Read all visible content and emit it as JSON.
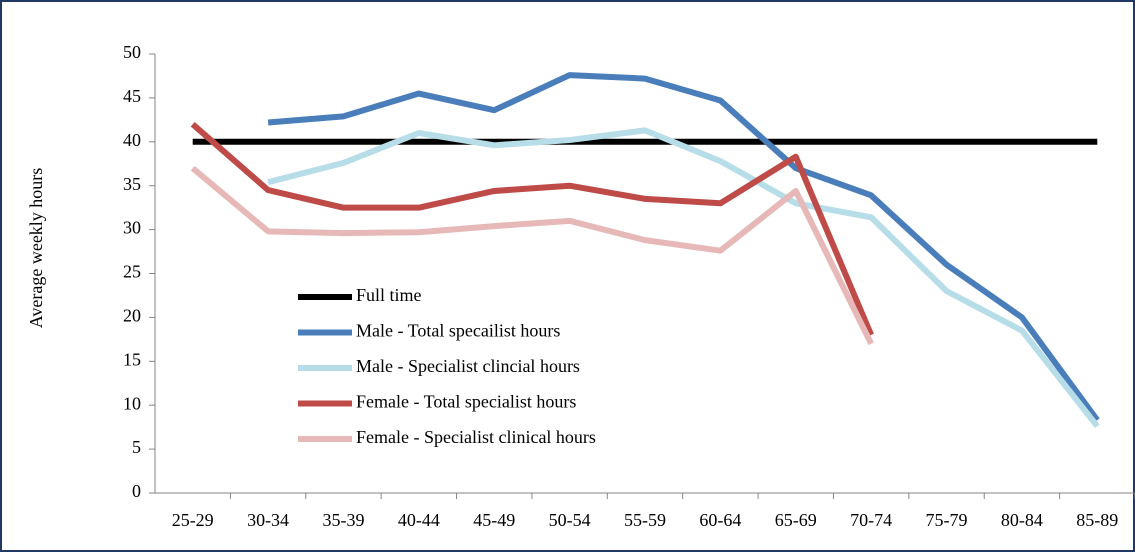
{
  "chart_data": {
    "type": "line",
    "y_label": "Average weekly hours",
    "categories": [
      "25-29",
      "30-34",
      "35-39",
      "40-44",
      "45-49",
      "50-54",
      "55-59",
      "60-64",
      "65-69",
      "70-74",
      "75-79",
      "80-84",
      "85-89"
    ],
    "ylim": [
      0,
      50
    ],
    "yticks": [
      0,
      5,
      10,
      15,
      20,
      25,
      30,
      35,
      40,
      45,
      50
    ],
    "series": [
      {
        "name": "Full time",
        "color": "#000000",
        "values": [
          40,
          40,
          40,
          40,
          40,
          40,
          40,
          40,
          40,
          40,
          40,
          40,
          40
        ]
      },
      {
        "name": "Male - Total specailist hours",
        "color": "#4a7ebb",
        "values": [
          null,
          42.2,
          42.9,
          45.5,
          43.6,
          47.6,
          47.2,
          44.7,
          37,
          33.9,
          26,
          20,
          8.3
        ]
      },
      {
        "name": "Male - Specialist clincial hours",
        "color": "#b7dde8",
        "values": [
          null,
          35.4,
          37.6,
          41,
          39.6,
          40.2,
          41.3,
          37.8,
          33,
          31.4,
          23,
          18.5,
          7.6
        ]
      },
      {
        "name": "Female - Total specialist hours",
        "color": "#be4b48",
        "values": [
          42,
          34.5,
          32.5,
          32.5,
          34.4,
          35,
          33.5,
          33,
          38.3,
          18,
          null,
          null,
          null
        ]
      },
      {
        "name": "Female - Specialist clinical hours",
        "color": "#e6b9b8",
        "values": [
          37,
          29.8,
          29.6,
          29.7,
          30.4,
          31,
          28.8,
          27.6,
          34.4,
          17,
          null,
          null,
          null
        ]
      }
    ]
  }
}
